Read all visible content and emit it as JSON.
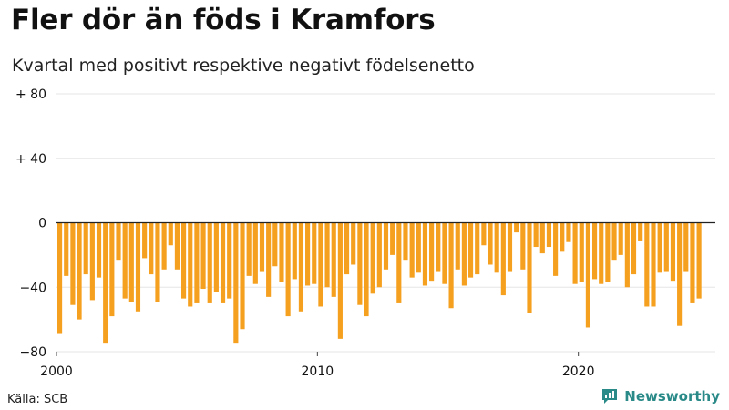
{
  "title": "Fler dör än föds i Kramfors",
  "subtitle": "Kvartal med positivt respektive negativt födelsenetto",
  "source": "Källa: SCB",
  "brand": "Newsworthy",
  "colors": {
    "bar": "#f5a01f",
    "zero_line": "#222222",
    "grid": "#e6e6e6",
    "brand": "#2a8a88"
  },
  "chart_data": {
    "type": "bar",
    "title": "Fler dör än föds i Kramfors",
    "subtitle": "Kvartal med positivt respektive negativt födelsenetto",
    "xlabel": "",
    "ylabel": "",
    "ylim": [
      -80,
      80
    ],
    "x_range": [
      2000,
      2025.25
    ],
    "grid": true,
    "y_ticks": [
      80,
      40,
      0,
      -40,
      -80
    ],
    "y_tick_labels": [
      "+ 80",
      "+ 40",
      "0",
      "−40",
      "−80"
    ],
    "x_ticks": [
      2000,
      2010,
      2020
    ],
    "x_tick_labels": [
      "2000",
      "2010",
      "2020"
    ],
    "start_year": 2000,
    "periods_per_year": 4,
    "values": [
      -69,
      -33,
      -51,
      -60,
      -32,
      -48,
      -34,
      -75,
      -58,
      -23,
      -47,
      -49,
      -55,
      -22,
      -32,
      -49,
      -29,
      -14,
      -29,
      -47,
      -52,
      -50,
      -41,
      -50,
      -43,
      -50,
      -47,
      -75,
      -66,
      -33,
      -38,
      -30,
      -46,
      -27,
      -37,
      -58,
      -35,
      -55,
      -39,
      -38,
      -52,
      -40,
      -46,
      -72,
      -32,
      -26,
      -51,
      -58,
      -44,
      -40,
      -29,
      -20,
      -50,
      -23,
      -34,
      -31,
      -39,
      -36,
      -30,
      -38,
      -53,
      -29,
      -39,
      -34,
      -32,
      -14,
      -26,
      -31,
      -45,
      -30,
      -6,
      -29,
      -56,
      -15,
      -19,
      -15,
      -33,
      -18,
      -12,
      -38,
      -37,
      -65,
      -35,
      -38,
      -37,
      -23,
      -20,
      -40,
      -32,
      -11,
      -52,
      -52,
      -31,
      -30,
      -36,
      -64,
      -30,
      -50,
      -47
    ]
  }
}
